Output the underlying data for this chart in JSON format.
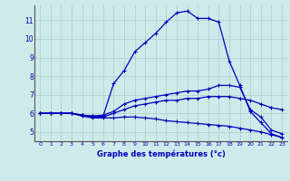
{
  "xlabel": "Graphe des températures (°c)",
  "bg_color": "#ceeaea",
  "grid_color": "#aacece",
  "line_color": "#0000bb",
  "xlim": [
    -0.5,
    23.5
  ],
  "ylim": [
    4.5,
    11.8
  ],
  "xticks": [
    0,
    1,
    2,
    3,
    4,
    5,
    6,
    7,
    8,
    9,
    10,
    11,
    12,
    13,
    14,
    15,
    16,
    17,
    18,
    19,
    20,
    21,
    22,
    23
  ],
  "yticks": [
    5,
    6,
    7,
    8,
    9,
    10,
    11
  ],
  "line_peak": [
    6.0,
    6.0,
    6.0,
    6.0,
    5.9,
    5.85,
    5.85,
    7.6,
    8.3,
    9.3,
    9.8,
    10.3,
    10.9,
    11.4,
    11.5,
    11.1,
    11.1,
    10.9,
    8.8,
    7.5,
    6.1,
    5.5,
    4.9,
    4.7
  ],
  "line_mid1": [
    6.0,
    6.0,
    6.0,
    6.0,
    5.9,
    5.85,
    5.9,
    6.1,
    6.5,
    6.7,
    6.8,
    6.9,
    7.0,
    7.1,
    7.2,
    7.2,
    7.3,
    7.5,
    7.5,
    7.4,
    6.2,
    5.8,
    5.1,
    4.9
  ],
  "line_mid2": [
    6.0,
    6.0,
    6.0,
    6.0,
    5.9,
    5.8,
    5.8,
    6.0,
    6.2,
    6.4,
    6.5,
    6.6,
    6.7,
    6.7,
    6.8,
    6.8,
    6.9,
    6.9,
    6.9,
    6.8,
    6.7,
    6.5,
    6.3,
    6.2
  ],
  "line_low": [
    6.0,
    6.0,
    6.0,
    6.0,
    5.85,
    5.75,
    5.75,
    5.75,
    5.8,
    5.8,
    5.75,
    5.7,
    5.6,
    5.55,
    5.5,
    5.45,
    5.4,
    5.35,
    5.3,
    5.2,
    5.1,
    5.0,
    4.85,
    4.7
  ]
}
